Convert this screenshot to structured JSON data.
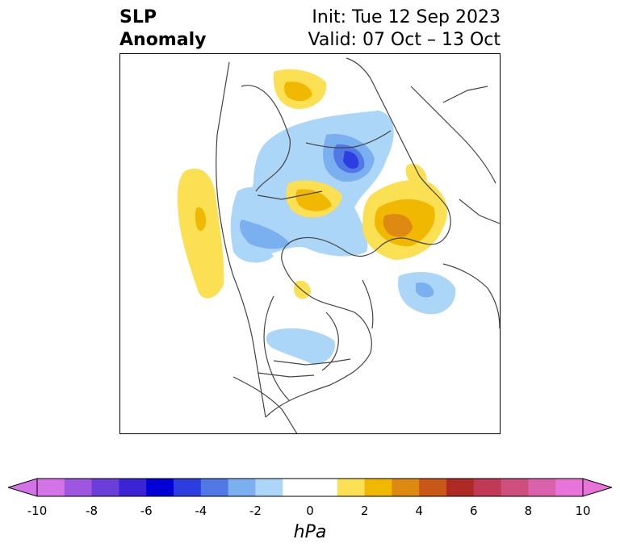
{
  "header": {
    "title_line1": "SLP",
    "title_line2": "Anomaly",
    "init_text": "Init: Tue 12 Sep 2023",
    "valid_text": "Valid: 07 Oct – 13 Oct"
  },
  "colorbar": {
    "unit": "hPa",
    "ticks": [
      "-10",
      "-8",
      "-6",
      "-4",
      "-2",
      "0",
      "2",
      "4",
      "6",
      "8",
      "10"
    ],
    "colors": [
      "#d472e8",
      "#9e55e0",
      "#6b3ed9",
      "#3a24d6",
      "#0000d6",
      "#2c3ee0",
      "#5079e6",
      "#7bb0f0",
      "#abd6f7",
      "#ffffff",
      "#ffffff",
      "#fbe053",
      "#f0b800",
      "#de8a12",
      "#c85718",
      "#b02a25",
      "#c03a55",
      "#ce4e7e",
      "#da62ad",
      "#e874da"
    ],
    "under_color": "#d472e8",
    "over_color": "#e874da"
  },
  "map": {
    "anomaly_colors": {
      "neg_light": "#abd6f7",
      "neg_mid": "#7bb0f0",
      "neg_strong": "#5079e6",
      "neg_deep": "#2c3ee0",
      "pos_light": "#fbe053",
      "pos_mid": "#f0b800",
      "pos_strong": "#de8a12"
    },
    "coastline_color": "#444444"
  }
}
